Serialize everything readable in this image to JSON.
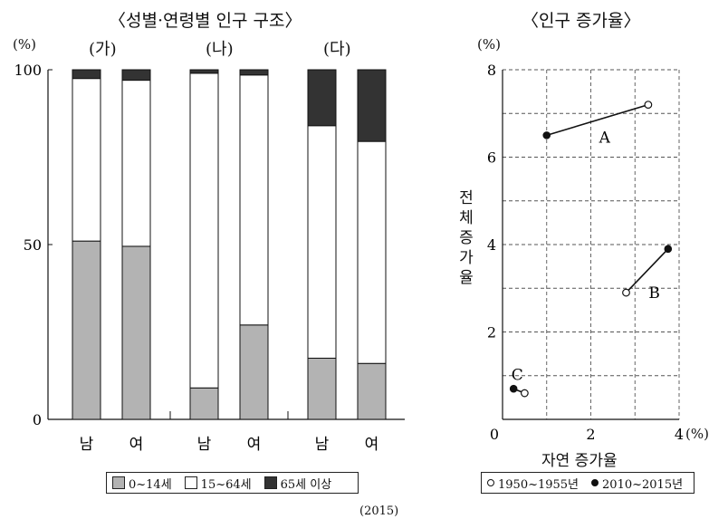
{
  "chart_data": [
    {
      "type": "bar",
      "stacked": true,
      "title": "〈성별·연령별 인구 구조〉",
      "y_unit": "(%)",
      "ylim": [
        0,
        100
      ],
      "y_ticks": [
        0,
        50,
        100
      ],
      "groups": [
        "(가)",
        "(나)",
        "(다)"
      ],
      "categories": [
        "남",
        "여",
        "남",
        "여",
        "남",
        "여"
      ],
      "series": [
        {
          "name": "0~14세",
          "color": "#b3b3b3",
          "values": [
            51,
            49.5,
            9,
            27,
            17.5,
            16
          ]
        },
        {
          "name": "15~64세",
          "color": "#ffffff",
          "values": [
            46.5,
            47.5,
            90,
            71.5,
            66.5,
            63.5
          ]
        },
        {
          "name": "65세 이상",
          "color": "#333333",
          "values": [
            2.5,
            3,
            1,
            1.5,
            16,
            20.5
          ]
        }
      ],
      "source_note": "(2015)"
    },
    {
      "type": "scatter",
      "title": "〈인구 증가율〉",
      "xlabel": "자연 증가율",
      "ylabel": "전체 증가율",
      "x_unit": "(%)",
      "y_unit": "(%)",
      "xlim": [
        0,
        4
      ],
      "ylim": [
        0,
        8
      ],
      "x_ticks": [
        0,
        2,
        4
      ],
      "y_ticks": [
        2,
        4,
        6,
        8
      ],
      "grid": true,
      "legend": [
        "1950~1955년",
        "2010~2015년"
      ],
      "points": [
        {
          "label": "A",
          "from": [
            3.3,
            7.2
          ],
          "to": [
            1.0,
            6.5
          ]
        },
        {
          "label": "B",
          "from": [
            2.8,
            2.9
          ],
          "to": [
            3.75,
            3.9
          ]
        },
        {
          "label": "C",
          "from": [
            0.5,
            0.6
          ],
          "to": [
            0.25,
            0.7
          ]
        }
      ]
    }
  ]
}
